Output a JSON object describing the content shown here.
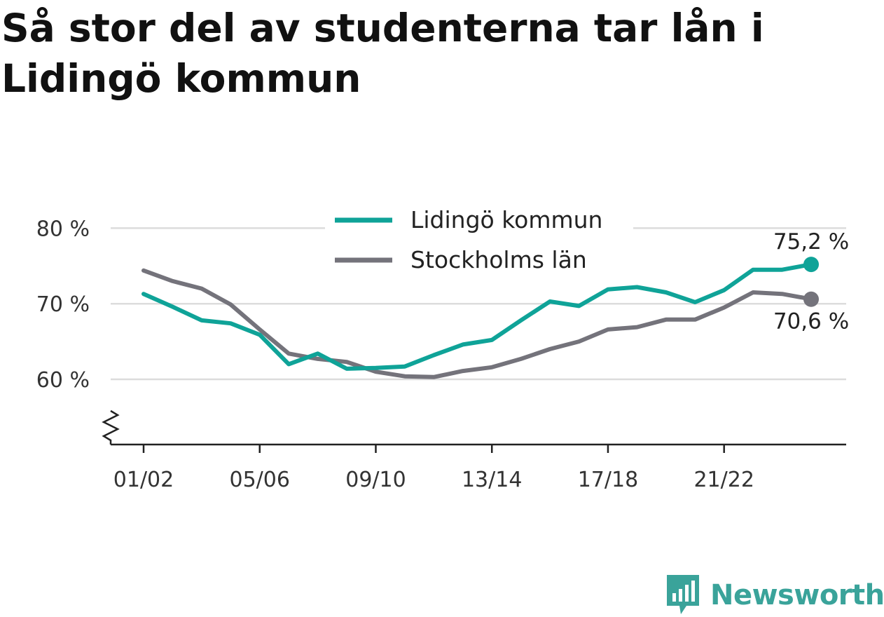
{
  "title": "Så stor del av studenterna tar lån i Lidingö kommun",
  "colors": {
    "lidingo": "#0fa398",
    "stockholm": "#74737b",
    "grid": "#dcdcdc",
    "axis": "#222222",
    "brand": "#3aa39a"
  },
  "brand": {
    "name": "Newsworthy",
    "logo_icon": "bar-chart-icon"
  },
  "chart_data": {
    "type": "line",
    "title": "Så stor del av studenterna tar lån i Lidingö kommun",
    "xlabel": "",
    "ylabel": "",
    "x": [
      "01/02",
      "02/03",
      "03/04",
      "04/05",
      "05/06",
      "06/07",
      "07/08",
      "08/09",
      "09/10",
      "10/11",
      "11/12",
      "12/13",
      "13/14",
      "14/15",
      "15/16",
      "16/17",
      "17/18",
      "18/19",
      "19/20",
      "20/21",
      "21/22",
      "22/23",
      "23/24",
      "24/25"
    ],
    "x_tick_labels": [
      "01/02",
      "05/06",
      "09/10",
      "13/14",
      "17/18",
      "21/22"
    ],
    "y_ticks": [
      60,
      70,
      80
    ],
    "y_tick_labels": [
      "60 %",
      "70 %",
      "80 %"
    ],
    "ylim": [
      51.5,
      80
    ],
    "y_axis_break": true,
    "grid": true,
    "legend": "top-center",
    "series": [
      {
        "name": "Lidingö kommun",
        "color": "#0fa398",
        "values": [
          71.3,
          69.6,
          67.8,
          67.4,
          65.9,
          62.0,
          63.4,
          61.4,
          61.5,
          61.7,
          63.2,
          64.6,
          65.2,
          67.8,
          70.3,
          69.7,
          71.9,
          72.2,
          71.5,
          70.2,
          71.8,
          74.5,
          74.5,
          75.2
        ],
        "end_label": "75,2 %"
      },
      {
        "name": "Stockholms län",
        "color": "#74737b",
        "values": [
          74.4,
          73.0,
          72.0,
          69.9,
          66.6,
          63.4,
          62.7,
          62.3,
          61.0,
          60.4,
          60.3,
          61.1,
          61.6,
          62.7,
          64.0,
          65.0,
          66.6,
          66.9,
          67.9,
          67.9,
          69.5,
          71.5,
          71.3,
          70.6
        ],
        "end_label": "70,6 %"
      }
    ]
  }
}
